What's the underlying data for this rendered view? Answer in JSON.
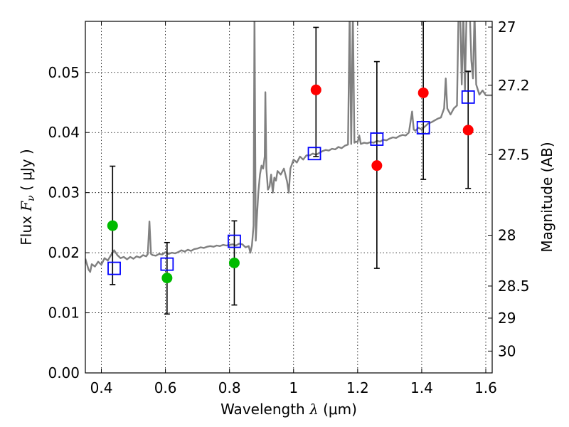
{
  "chart_data": {
    "type": "scatter",
    "xlabel_text": "Wavelength",
    "xlabel_symbol": "λ",
    "xlabel_unit": "(μm)",
    "ylabel_text": "Flux",
    "ylabel_symbol": "F",
    "ylabel_sub": "ν",
    "ylabel_unit": "( μJy )",
    "y2label": "Magnitude (AB)",
    "xlim": [
      0.35,
      1.62
    ],
    "ylim": [
      0.0,
      0.0585
    ],
    "grid": true,
    "x_ticks": [
      0.4,
      0.6,
      0.8,
      1.0,
      1.2,
      1.4,
      1.6
    ],
    "x_tick_labels": [
      "0.4",
      "0.6",
      "0.8",
      "1",
      "1.2",
      "1.4",
      "1.6"
    ],
    "y_ticks": [
      0.0,
      0.01,
      0.02,
      0.03,
      0.04,
      0.05
    ],
    "y_tick_labels": [
      "0.00",
      "0.01",
      "0.02",
      "0.03",
      "0.04",
      "0.05"
    ],
    "mag_ticks": [
      27,
      27.2,
      27.5,
      28,
      28.5,
      29,
      30
    ],
    "mag_tick_labels": [
      "27",
      "27.2",
      "27.5",
      "28",
      "28.5",
      "29",
      "30"
    ],
    "colors": {
      "spectrum": "#808080",
      "model": "#0000ff",
      "green_points": "#00bb00",
      "red_points": "#ff0000",
      "errorbar": "#000000"
    },
    "spectrum": [
      [
        0.35,
        0.019
      ],
      [
        0.36,
        0.0172
      ],
      [
        0.365,
        0.0168
      ],
      [
        0.37,
        0.0181
      ],
      [
        0.38,
        0.0177
      ],
      [
        0.39,
        0.0185
      ],
      [
        0.4,
        0.018
      ],
      [
        0.41,
        0.0191
      ],
      [
        0.42,
        0.0187
      ],
      [
        0.43,
        0.0196
      ],
      [
        0.44,
        0.0204
      ],
      [
        0.45,
        0.0196
      ],
      [
        0.46,
        0.0191
      ],
      [
        0.47,
        0.0193
      ],
      [
        0.48,
        0.0189
      ],
      [
        0.49,
        0.0193
      ],
      [
        0.5,
        0.019
      ],
      [
        0.51,
        0.0194
      ],
      [
        0.52,
        0.0192
      ],
      [
        0.53,
        0.0196
      ],
      [
        0.54,
        0.0194
      ],
      [
        0.545,
        0.0198
      ],
      [
        0.55,
        0.0252
      ],
      [
        0.555,
        0.0198
      ],
      [
        0.56,
        0.0196
      ],
      [
        0.57,
        0.0195
      ],
      [
        0.58,
        0.0198
      ],
      [
        0.59,
        0.0197
      ],
      [
        0.6,
        0.0201
      ],
      [
        0.61,
        0.0198
      ],
      [
        0.62,
        0.02
      ],
      [
        0.63,
        0.0199
      ],
      [
        0.64,
        0.0201
      ],
      [
        0.65,
        0.0204
      ],
      [
        0.66,
        0.0202
      ],
      [
        0.67,
        0.0205
      ],
      [
        0.68,
        0.0203
      ],
      [
        0.69,
        0.0206
      ],
      [
        0.7,
        0.0207
      ],
      [
        0.71,
        0.0209
      ],
      [
        0.72,
        0.0208
      ],
      [
        0.73,
        0.021
      ],
      [
        0.74,
        0.0211
      ],
      [
        0.75,
        0.021
      ],
      [
        0.76,
        0.0212
      ],
      [
        0.77,
        0.0211
      ],
      [
        0.78,
        0.0213
      ],
      [
        0.79,
        0.0212
      ],
      [
        0.8,
        0.0213
      ],
      [
        0.81,
        0.0214
      ],
      [
        0.82,
        0.0212
      ],
      [
        0.83,
        0.0215
      ],
      [
        0.84,
        0.0214
      ],
      [
        0.85,
        0.0209
      ],
      [
        0.86,
        0.0211
      ],
      [
        0.865,
        0.02
      ],
      [
        0.87,
        0.0212
      ],
      [
        0.875,
        0.0245
      ],
      [
        0.878,
        0.06
      ],
      [
        0.882,
        0.022
      ],
      [
        0.885,
        0.0255
      ],
      [
        0.89,
        0.03
      ],
      [
        0.895,
        0.033
      ],
      [
        0.9,
        0.0345
      ],
      [
        0.905,
        0.034
      ],
      [
        0.91,
        0.036
      ],
      [
        0.912,
        0.0467
      ],
      [
        0.915,
        0.034
      ],
      [
        0.92,
        0.0305
      ],
      [
        0.925,
        0.031
      ],
      [
        0.93,
        0.033
      ],
      [
        0.935,
        0.03
      ],
      [
        0.94,
        0.0325
      ],
      [
        0.945,
        0.032
      ],
      [
        0.95,
        0.0336
      ],
      [
        0.96,
        0.033
      ],
      [
        0.97,
        0.034
      ],
      [
        0.98,
        0.0318
      ],
      [
        0.985,
        0.03
      ],
      [
        0.99,
        0.034
      ],
      [
        1.0,
        0.0355
      ],
      [
        1.01,
        0.035
      ],
      [
        1.02,
        0.036
      ],
      [
        1.03,
        0.0355
      ],
      [
        1.04,
        0.0362
      ],
      [
        1.05,
        0.0362
      ],
      [
        1.06,
        0.0365
      ],
      [
        1.07,
        0.0363
      ],
      [
        1.08,
        0.0366
      ],
      [
        1.09,
        0.0369
      ],
      [
        1.1,
        0.0371
      ],
      [
        1.11,
        0.037
      ],
      [
        1.12,
        0.0373
      ],
      [
        1.13,
        0.0372
      ],
      [
        1.14,
        0.0376
      ],
      [
        1.15,
        0.0374
      ],
      [
        1.16,
        0.0378
      ],
      [
        1.17,
        0.038
      ],
      [
        1.175,
        0.06
      ],
      [
        1.18,
        0.0381
      ],
      [
        1.185,
        0.06
      ],
      [
        1.19,
        0.0383
      ],
      [
        1.195,
        0.0385
      ],
      [
        1.2,
        0.0384
      ],
      [
        1.205,
        0.0395
      ],
      [
        1.21,
        0.0381
      ],
      [
        1.22,
        0.0383
      ],
      [
        1.23,
        0.0382
      ],
      [
        1.24,
        0.0384
      ],
      [
        1.25,
        0.0383
      ],
      [
        1.26,
        0.0386
      ],
      [
        1.27,
        0.0385
      ],
      [
        1.28,
        0.0388
      ],
      [
        1.29,
        0.0387
      ],
      [
        1.3,
        0.039
      ],
      [
        1.31,
        0.0392
      ],
      [
        1.32,
        0.0391
      ],
      [
        1.33,
        0.0394
      ],
      [
        1.34,
        0.0396
      ],
      [
        1.35,
        0.0395
      ],
      [
        1.36,
        0.04
      ],
      [
        1.37,
        0.0435
      ],
      [
        1.375,
        0.0405
      ],
      [
        1.38,
        0.0403
      ],
      [
        1.39,
        0.0408
      ],
      [
        1.4,
        0.0405
      ],
      [
        1.41,
        0.041
      ],
      [
        1.42,
        0.0415
      ],
      [
        1.43,
        0.0417
      ],
      [
        1.44,
        0.042
      ],
      [
        1.45,
        0.0423
      ],
      [
        1.46,
        0.0425
      ],
      [
        1.47,
        0.044
      ],
      [
        1.475,
        0.049
      ],
      [
        1.48,
        0.044
      ],
      [
        1.49,
        0.043
      ],
      [
        1.5,
        0.044
      ],
      [
        1.51,
        0.0445
      ],
      [
        1.515,
        0.06
      ],
      [
        1.52,
        0.06
      ],
      [
        1.525,
        0.048
      ],
      [
        1.53,
        0.06
      ],
      [
        1.535,
        0.047
      ],
      [
        1.54,
        0.06
      ],
      [
        1.545,
        0.06
      ],
      [
        1.55,
        0.06
      ],
      [
        1.555,
        0.052
      ],
      [
        1.56,
        0.049
      ],
      [
        1.565,
        0.06
      ],
      [
        1.57,
        0.048
      ],
      [
        1.58,
        0.0463
      ],
      [
        1.59,
        0.047
      ],
      [
        1.6,
        0.0462
      ],
      [
        1.62,
        0.0462
      ]
    ],
    "series": [
      {
        "marker": "square-open",
        "color": "#0000ff",
        "points": [
          [
            0.44,
            0.0174
          ],
          [
            0.605,
            0.0181
          ],
          [
            0.815,
            0.0219
          ],
          [
            1.065,
            0.0365
          ],
          [
            1.26,
            0.0389
          ],
          [
            1.405,
            0.0408
          ],
          [
            1.545,
            0.0459
          ]
        ]
      },
      {
        "marker": "circle",
        "color": "#00bb00",
        "points": [
          {
            "x": 0.435,
            "y": 0.0245,
            "lo": 0.0147,
            "hi": 0.0344
          },
          {
            "x": 0.605,
            "y": 0.0158,
            "lo": 0.0098,
            "hi": 0.0217
          },
          {
            "x": 0.815,
            "y": 0.0183,
            "lo": 0.0113,
            "hi": 0.0253
          }
        ]
      },
      {
        "marker": "circle",
        "color": "#ff0000",
        "points": [
          {
            "x": 1.07,
            "y": 0.0471,
            "lo": 0.036,
            "hi": 0.0575
          },
          {
            "x": 1.26,
            "y": 0.0345,
            "lo": 0.0174,
            "hi": 0.0518
          },
          {
            "x": 1.405,
            "y": 0.0466,
            "lo": 0.0322,
            "hi": 0.0585
          },
          {
            "x": 1.545,
            "y": 0.0404,
            "lo": 0.0307,
            "hi": 0.0502
          }
        ]
      }
    ]
  }
}
